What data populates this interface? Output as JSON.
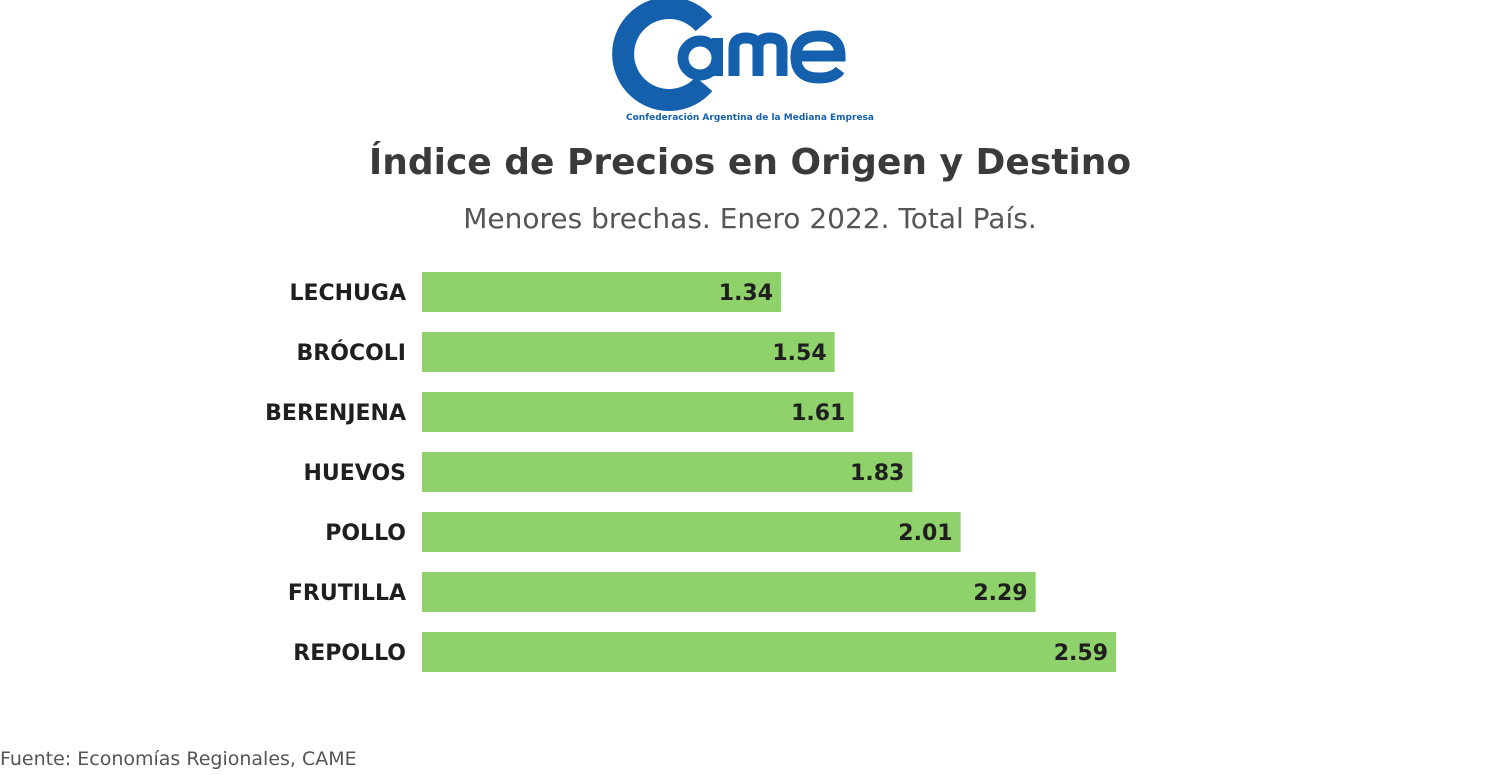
{
  "logo": {
    "wordmark": "CAME",
    "tagline": "Confederación Argentina de la Mediana Empresa",
    "color": "#1560ad"
  },
  "chart_data": {
    "type": "bar",
    "orientation": "horizontal",
    "title": "Índice de Precios en Origen y Destino",
    "subtitle": "Menores brechas. Enero 2022. Total País.",
    "categories": [
      "LECHUGA",
      "BRÓCOLI",
      "BERENJENA",
      "HUEVOS",
      "POLLO",
      "FRUTILLA",
      "REPOLLO"
    ],
    "values": [
      1.34,
      1.54,
      1.61,
      1.83,
      2.01,
      2.29,
      2.59
    ],
    "value_labels": [
      "1.34",
      "1.54",
      "1.61",
      "1.83",
      "2.01",
      "2.29",
      "2.59"
    ],
    "xlim": [
      0,
      2.59
    ],
    "grid": false,
    "bar_color": "#8fd16a",
    "source": "Fuente: Economías Regionales, CAME"
  }
}
